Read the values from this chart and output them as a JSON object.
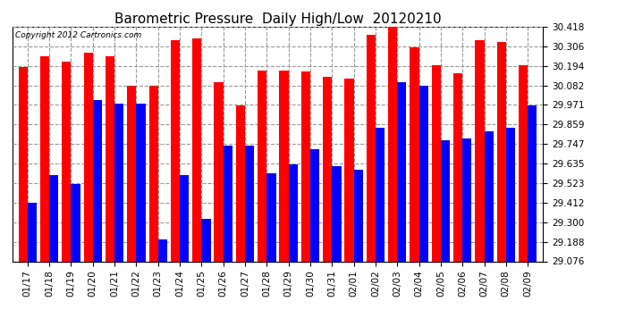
{
  "title": "Barometric Pressure  Daily High/Low  20120210",
  "copyright": "Copyright 2012 Cartronics.com",
  "dates": [
    "01/17",
    "01/18",
    "01/19",
    "01/20",
    "01/21",
    "01/22",
    "01/23",
    "01/24",
    "01/25",
    "01/26",
    "01/27",
    "01/28",
    "01/29",
    "01/30",
    "01/31",
    "02/01",
    "02/02",
    "02/03",
    "02/04",
    "02/05",
    "02/06",
    "02/07",
    "02/08",
    "02/09"
  ],
  "highs": [
    30.19,
    30.25,
    30.22,
    30.27,
    30.25,
    30.08,
    30.08,
    30.34,
    30.35,
    30.1,
    29.97,
    30.17,
    30.17,
    30.16,
    30.13,
    30.12,
    30.37,
    30.42,
    30.3,
    30.2,
    30.15,
    30.34,
    30.33,
    30.2
  ],
  "lows": [
    29.41,
    29.57,
    29.52,
    30.0,
    29.98,
    29.98,
    29.2,
    29.57,
    29.32,
    29.74,
    29.74,
    29.58,
    29.63,
    29.72,
    29.62,
    29.6,
    29.84,
    30.1,
    30.08,
    29.77,
    29.78,
    29.82,
    29.84,
    29.97
  ],
  "ymin": 29.076,
  "ymax": 30.418,
  "yticks": [
    29.076,
    29.188,
    29.3,
    29.412,
    29.523,
    29.635,
    29.747,
    29.859,
    29.971,
    30.082,
    30.194,
    30.306,
    30.418
  ],
  "bar_width": 0.42,
  "high_color": "#ff0000",
  "low_color": "#0000ff",
  "bg_color": "#ffffff",
  "grid_color": "#999999",
  "title_fontsize": 11,
  "tick_fontsize": 7.5
}
